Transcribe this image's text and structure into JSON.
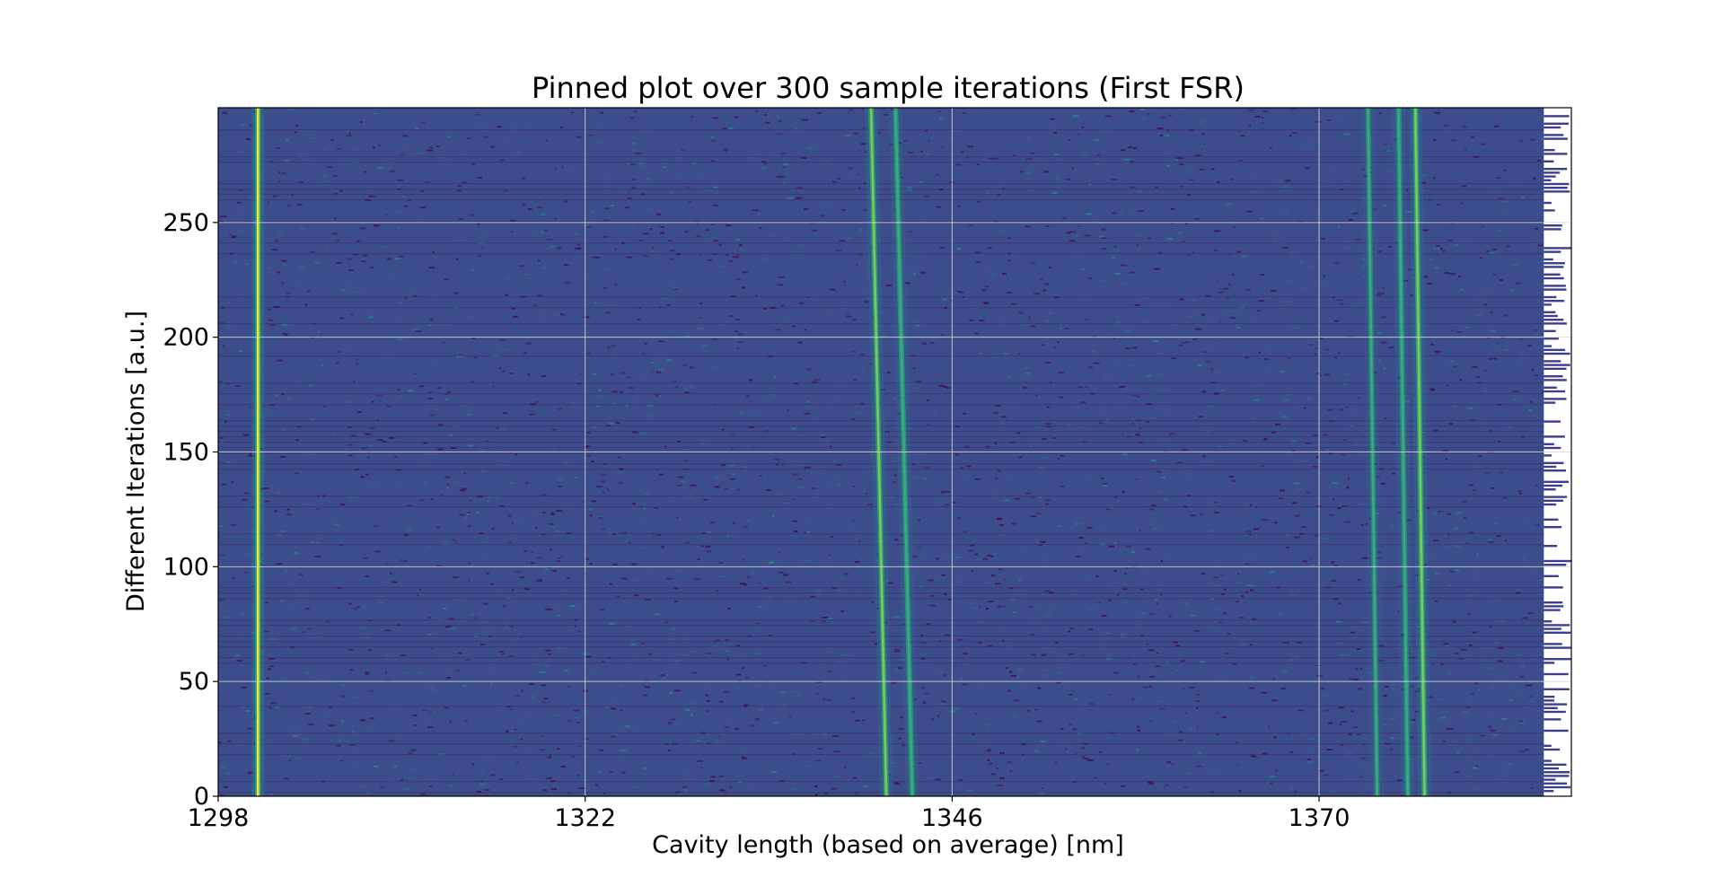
{
  "chart_data": {
    "type": "heatmap",
    "title": "Pinned plot over 300 sample iterations (First FSR)",
    "xlabel": "Cavity length (based on average) [nm]",
    "ylabel": "Different Iterations [a.u.]",
    "xlim": [
      1298,
      1386.5
    ],
    "ylim": [
      0,
      300
    ],
    "x_ticks": [
      1298,
      1322,
      1346,
      1370
    ],
    "y_ticks": [
      0,
      50,
      100,
      150,
      200,
      250
    ],
    "grid": true,
    "colormap": "viridis",
    "colors": {
      "background": "#3b4d8a",
      "low": "#440154",
      "mid": "#21918c",
      "high": "#fde725",
      "grid": "#d8d8d8"
    },
    "bright_lines": [
      {
        "name": "",
        "x_at_y0": 1300.6,
        "x_at_y300": 1300.6,
        "intensity": 1.0
      },
      {
        "name": "",
        "x_at_y0": 1341.7,
        "x_at_y300": 1340.7,
        "intensity": 0.65
      },
      {
        "name": "",
        "x_at_y0": 1343.4,
        "x_at_y300": 1342.3,
        "intensity": 0.5
      },
      {
        "name": "",
        "x_at_y0": 1376.9,
        "x_at_y300": 1376.3,
        "intensity": 0.75
      },
      {
        "name": "",
        "x_at_y0": 1375.8,
        "x_at_y300": 1375.2,
        "intensity": 0.45
      },
      {
        "name": "",
        "x_at_y0": 1373.8,
        "x_at_y300": 1373.2,
        "intensity": 0.35
      }
    ],
    "edge_band_start_x": 1384.7
  }
}
